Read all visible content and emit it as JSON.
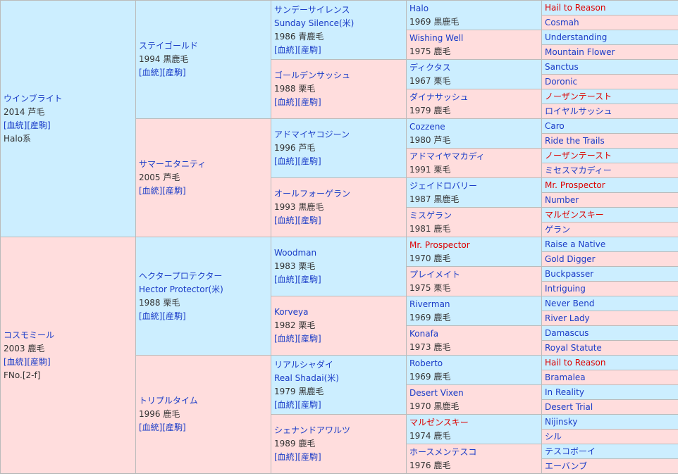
{
  "gen1": [
    {
      "name": "ウインブライト",
      "info": "2014 芦毛",
      "links": "[血統][産駒]",
      "extra": "Halo系"
    },
    {
      "name": "コスモミール",
      "info": "2003 鹿毛",
      "links": "[血統][産駒]",
      "extra": "FNo.[2-f]"
    }
  ],
  "gen2": [
    {
      "name": "ステイゴールド",
      "alt": "",
      "info": "1994 黒鹿毛",
      "links": "[血統][産駒]"
    },
    {
      "name": "サマーエタニティ",
      "alt": "",
      "info": "2005 芦毛",
      "links": "[血統][産駒]"
    },
    {
      "name": "ヘクタープロテクター",
      "alt": "Hector Protector(米)",
      "info": "1988 栗毛",
      "links": "[血統][産駒]"
    },
    {
      "name": "トリプルタイム",
      "alt": "",
      "info": "1996 鹿毛",
      "links": "[血統][産駒]"
    }
  ],
  "gen3": [
    {
      "name": "サンデーサイレンス",
      "alt": "Sunday Silence(米)",
      "info": "1986 青鹿毛",
      "links": "[血統][産駒]"
    },
    {
      "name": "ゴールデンサッシュ",
      "alt": "",
      "info": "1988 栗毛",
      "links": "[血統][産駒]"
    },
    {
      "name": "アドマイヤコジーン",
      "alt": "",
      "info": "1996 芦毛",
      "links": "[血統][産駒]"
    },
    {
      "name": "オールフォーゲラン",
      "alt": "",
      "info": "1993 黒鹿毛",
      "links": "[血統][産駒]"
    },
    {
      "name": "Woodman",
      "alt": "",
      "info": "1983 栗毛",
      "links": "[血統][産駒]"
    },
    {
      "name": "Korveya",
      "alt": "",
      "info": "1982 栗毛",
      "links": "[血統][産駒]"
    },
    {
      "name": "リアルシャダイ",
      "alt": "Real Shadai(米)",
      "info": "1979 黒鹿毛",
      "links": "[血統][産駒]"
    },
    {
      "name": "シェナンドアワルツ",
      "alt": "",
      "info": "1989 鹿毛",
      "links": "[血統][産駒]"
    }
  ],
  "gen4": [
    {
      "name": "Halo",
      "info": "1969 黒鹿毛"
    },
    {
      "name": "Wishing Well",
      "info": "1975 鹿毛"
    },
    {
      "name": "ディクタス",
      "info": "1967 栗毛"
    },
    {
      "name": "ダイナサッシュ",
      "info": "1979 鹿毛"
    },
    {
      "name": "Cozzene",
      "info": "1980 芦毛"
    },
    {
      "name": "アドマイヤマカディ",
      "info": "1991 栗毛"
    },
    {
      "name": "ジェイドロバリー",
      "info": "1987 黒鹿毛"
    },
    {
      "name": "ミスゲラン",
      "info": "1981 鹿毛"
    },
    {
      "name": "Mr. Prospector",
      "info": "1970 鹿毛"
    },
    {
      "name": "プレイメイト",
      "info": "1975 栗毛"
    },
    {
      "name": "Riverman",
      "info": "1969 鹿毛"
    },
    {
      "name": "Konafa",
      "info": "1973 鹿毛"
    },
    {
      "name": "Roberto",
      "info": "1969 鹿毛"
    },
    {
      "name": "Desert Vixen",
      "info": "1970 黒鹿毛"
    },
    {
      "name": "マルゼンスキー",
      "info": "1974 鹿毛"
    },
    {
      "name": "ホースメンテスコ",
      "info": "1976 鹿毛"
    }
  ],
  "gen5": [
    "Hail to Reason",
    "Cosmah",
    "Understanding",
    "Mountain Flower",
    "Sanctus",
    "Doronic",
    "ノーザンテースト",
    "ロイヤルサッシュ",
    "Caro",
    "Ride the Trails",
    "ノーザンテースト",
    "ミセスマカディー",
    "Mr. Prospector",
    "Number",
    "マルゼンスキー",
    "ゲラン",
    "Raise a Native",
    "Gold Digger",
    "Buckpasser",
    "Intriguing",
    "Never Bend",
    "River Lady",
    "Damascus",
    "Royal Statute",
    "Hail to Reason",
    "Bramalea",
    "In Reality",
    "Desert Trial",
    "Nijinsky",
    "シル",
    "テスコボーイ",
    "エーバンブ"
  ],
  "colors": {
    "male_bg": "#cceeff",
    "female_bg": "#ffdddd",
    "link": "#1a3cc8",
    "highlight": "#dd0000",
    "border": "#bbbbbb"
  }
}
